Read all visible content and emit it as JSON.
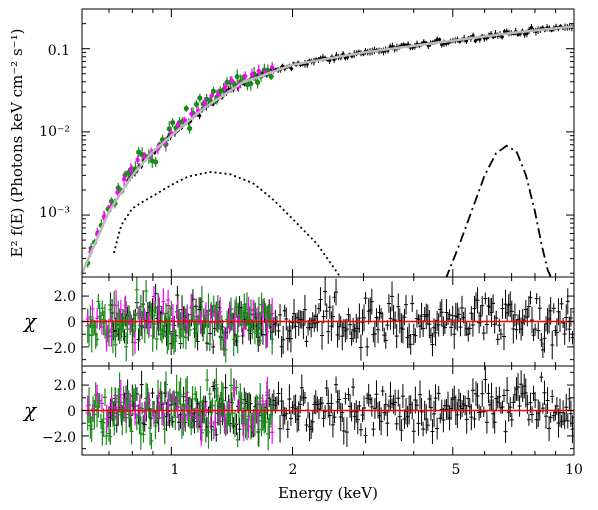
{
  "figure": {
    "xlabel": "Energy (keV)",
    "ylabel": "E² f(E) (Photons keV cm⁻² s⁻¹)",
    "x_tick_labels": [
      "1",
      "2",
      "5",
      "10"
    ],
    "top_y_tick_labels": [
      "10⁻³",
      "10⁻²",
      "0.1"
    ],
    "residual_tick_labels": [
      "2.0",
      "0",
      "−2.0"
    ],
    "chi_symbol": "χ"
  },
  "colors": {
    "data_primary": "#000000",
    "data_secondary": "#1a8a1a",
    "data_tertiary": "#ff00ff",
    "model": "#bbbbbb",
    "zero_line": "#ff0000"
  },
  "chart_data": [
    {
      "type": "scatter",
      "panel": "spectrum",
      "x_scale": "log",
      "y_scale": "log",
      "xlim": [
        0.6,
        10
      ],
      "ylim": [
        0.00018,
        0.3
      ],
      "series": [
        {
          "role": "black data",
          "x": [
            1.8,
            2.0,
            2.3,
            2.6,
            3.0,
            3.5,
            4.0,
            4.5,
            5.0,
            6.0,
            7.0,
            8.0,
            9.0,
            10.0
          ],
          "y": [
            0.062,
            0.069,
            0.078,
            0.085,
            0.093,
            0.103,
            0.112,
            0.12,
            0.127,
            0.142,
            0.155,
            0.166,
            0.177,
            0.186
          ]
        },
        {
          "role": "green data",
          "x": [
            0.62,
            0.65,
            0.7,
            0.75,
            0.8,
            0.85,
            0.9,
            1.0,
            1.1,
            1.2,
            1.3,
            1.4,
            1.5,
            1.6,
            1.7,
            1.75
          ],
          "y": [
            0.00025,
            0.00055,
            0.0011,
            0.0024,
            0.0036,
            0.0055,
            0.0045,
            0.011,
            0.016,
            0.024,
            0.03,
            0.037,
            0.043,
            0.05,
            0.055,
            0.058
          ]
        },
        {
          "role": "magenta data",
          "x": [
            0.63,
            0.67,
            0.72,
            0.78,
            0.85,
            0.95,
            1.05,
            1.2,
            1.35,
            1.5,
            1.65,
            1.78
          ],
          "y": [
            0.0004,
            0.0008,
            0.0015,
            0.003,
            0.005,
            0.0075,
            0.012,
            0.022,
            0.032,
            0.041,
            0.05,
            0.057
          ]
        },
        {
          "role": "total model",
          "x": [
            0.6,
            0.7,
            0.8,
            0.9,
            1.0,
            1.2,
            1.5,
            2.0,
            3.0,
            5.0,
            7.0,
            10.0
          ],
          "y": [
            0.0002,
            0.0011,
            0.003,
            0.0058,
            0.009,
            0.019,
            0.039,
            0.064,
            0.09,
            0.125,
            0.155,
            0.185
          ]
        },
        {
          "role": "dotted component",
          "x": [
            0.72,
            0.75,
            0.8,
            0.85,
            0.9,
            1.0,
            1.1,
            1.25,
            1.4,
            1.6,
            1.8,
            2.0,
            2.3,
            2.65
          ],
          "y": [
            0.00035,
            0.00075,
            0.0012,
            0.00145,
            0.0017,
            0.0023,
            0.0029,
            0.0033,
            0.0031,
            0.0024,
            0.0015,
            0.0009,
            0.00045,
            0.00017
          ]
        },
        {
          "role": "dash-dot component",
          "x": [
            4.8,
            5.2,
            5.6,
            6.0,
            6.4,
            6.8,
            7.2,
            7.6,
            8.0,
            8.3,
            8.6,
            8.8
          ],
          "y": [
            0.00017,
            0.00045,
            0.0012,
            0.003,
            0.0055,
            0.0068,
            0.0058,
            0.003,
            0.0011,
            0.00045,
            0.00022,
            0.00017
          ]
        }
      ]
    },
    {
      "type": "scatter",
      "panel": "residuals-1",
      "x_scale": "log",
      "xlim": [
        0.6,
        10
      ],
      "ylim": [
        -3.5,
        3.5
      ],
      "zero_line": 0
    },
    {
      "type": "scatter",
      "panel": "residuals-2",
      "x_scale": "log",
      "xlim": [
        0.6,
        10
      ],
      "ylim": [
        -3.5,
        3.5
      ],
      "zero_line": 0
    }
  ]
}
